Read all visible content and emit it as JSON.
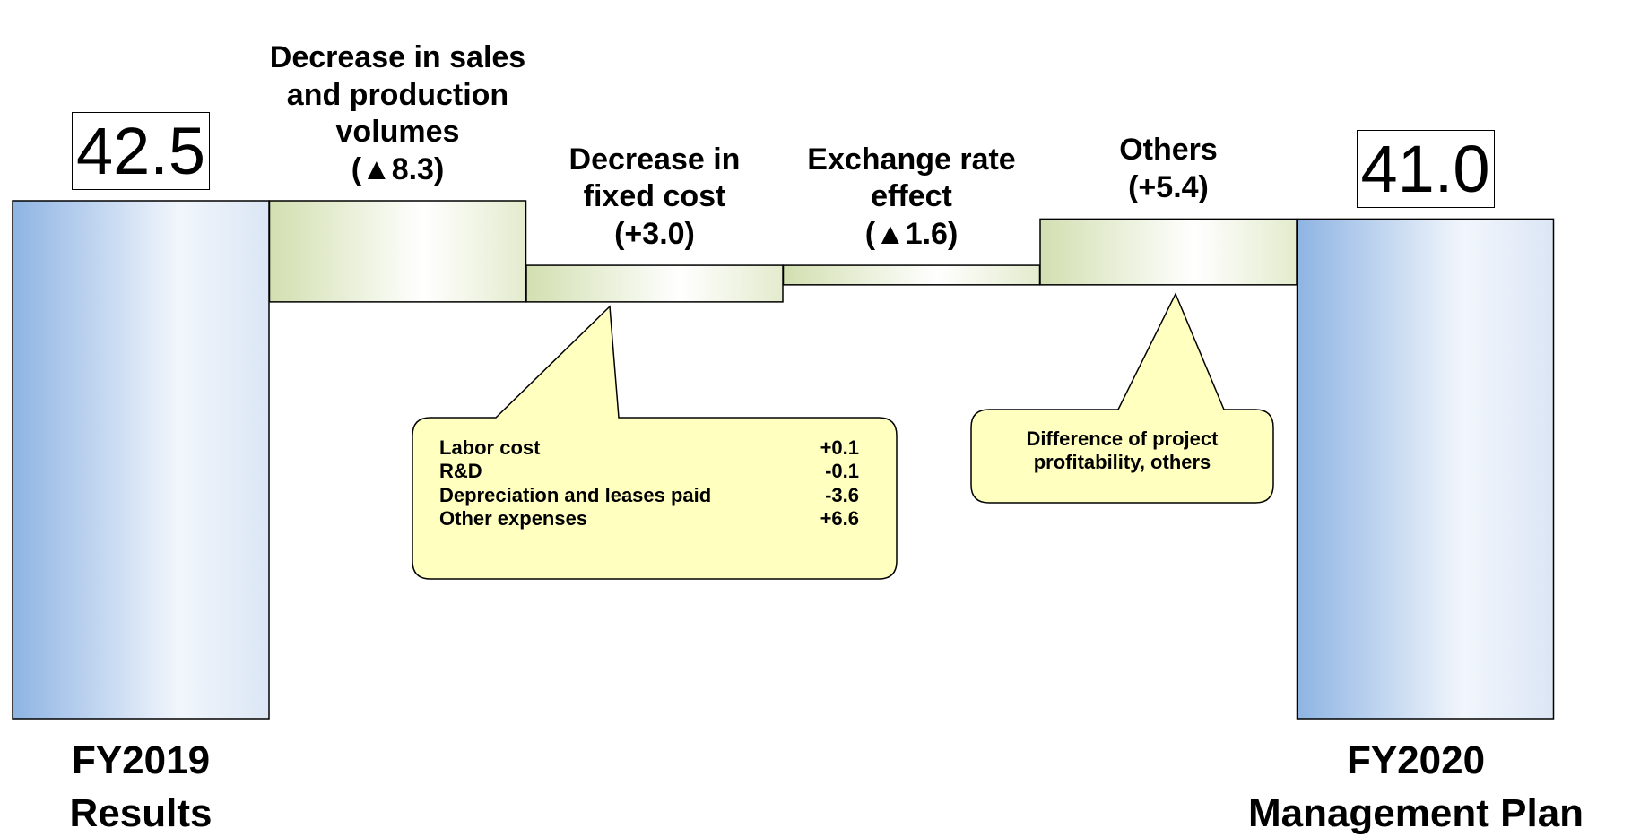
{
  "chart_data": {
    "type": "waterfall",
    "categories": [
      "FY2019\nResults",
      "Decrease in sales\nand production\nvolumes",
      "Decrease in\nfixed cost",
      "Exchange rate\neffect",
      "Others",
      "FY2020\nManagement Plan"
    ],
    "values": [
      42.5,
      -8.3,
      3.0,
      -1.6,
      5.4,
      41.0
    ],
    "value_labels": [
      "42.5",
      "(▲8.3)",
      "(+3.0)",
      "(▲1.6)",
      "(+5.4)",
      "41.0"
    ],
    "ylim": [
      0,
      50
    ],
    "total_color": "#8eb4e3",
    "step_color": "#d2dfb0",
    "callouts": [
      {
        "rows": [
          [
            "Labor cost",
            "+0.1"
          ],
          [
            "R&D",
            "-0.1"
          ],
          [
            "Depreciation and leases paid",
            "-3.6"
          ],
          [
            "Other expenses",
            "+6.6"
          ]
        ]
      },
      {
        "text": "Difference of project\nprofitability, others"
      }
    ]
  }
}
